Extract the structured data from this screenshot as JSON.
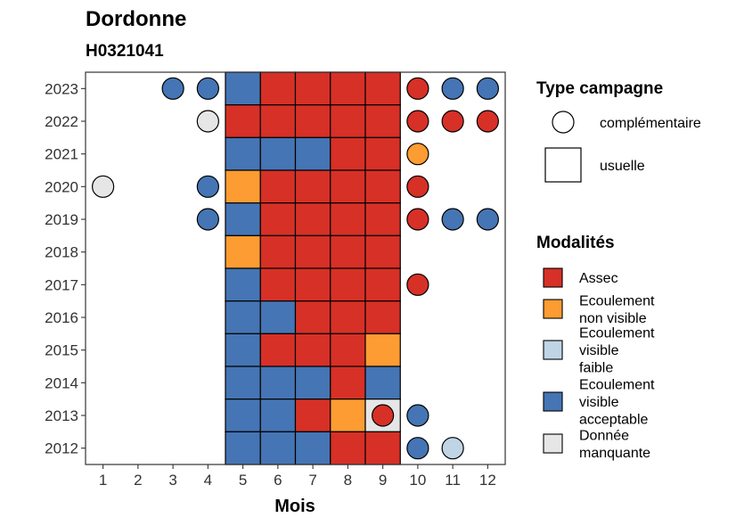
{
  "title": "Dordonne",
  "subtitle": "H0321041",
  "chart_data": {
    "type": "heatmap",
    "xlabel": "Mois",
    "ylabel": "",
    "x_ticks": [
      "1",
      "2",
      "3",
      "4",
      "5",
      "6",
      "7",
      "8",
      "9",
      "10",
      "11",
      "12"
    ],
    "y_ticks": [
      "2012",
      "2013",
      "2014",
      "2015",
      "2016",
      "2017",
      "2018",
      "2019",
      "2020",
      "2021",
      "2022",
      "2023"
    ],
    "xlim": [
      0.5,
      12.5
    ],
    "ylim": [
      2011.5,
      2023.5
    ],
    "colors": {
      "Assec": "#d73027",
      "Ecoulement non visible": "#fd9c32",
      "Ecoulement visible faible": "#bfd5e6",
      "Ecoulement visible acceptable": "#4575b4",
      "Donnée manquante": "#e6e6e6"
    },
    "usuelle": [
      {
        "year": 2023,
        "values": [
          "EA",
          "A",
          "A",
          "A",
          "A"
        ]
      },
      {
        "year": 2022,
        "values": [
          "A",
          "A",
          "A",
          "A",
          "A"
        ]
      },
      {
        "year": 2021,
        "values": [
          "EA",
          "EA",
          "EA",
          "A",
          "A"
        ]
      },
      {
        "year": 2020,
        "values": [
          "ENV",
          "A",
          "A",
          "A",
          "A"
        ]
      },
      {
        "year": 2019,
        "values": [
          "EA",
          "A",
          "A",
          "A",
          "A"
        ]
      },
      {
        "year": 2018,
        "values": [
          "ENV",
          "A",
          "A",
          "A",
          "A"
        ]
      },
      {
        "year": 2017,
        "values": [
          "EA",
          "A",
          "A",
          "A",
          "A"
        ]
      },
      {
        "year": 2016,
        "values": [
          "EA",
          "EA",
          "A",
          "A",
          "A"
        ]
      },
      {
        "year": 2015,
        "values": [
          "EA",
          "A",
          "A",
          "A",
          "ENV"
        ]
      },
      {
        "year": 2014,
        "values": [
          "EA",
          "EA",
          "EA",
          "A",
          "EA"
        ]
      },
      {
        "year": 2013,
        "values": [
          "EA",
          "EA",
          "A",
          "ENV",
          "DM"
        ]
      },
      {
        "year": 2012,
        "values": [
          "EA",
          "EA",
          "EA",
          "A",
          "A"
        ]
      }
    ],
    "usuelle_months": [
      5,
      6,
      7,
      8,
      9
    ],
    "complementaire": [
      {
        "year": 2023,
        "month": 3,
        "value": "EA"
      },
      {
        "year": 2023,
        "month": 4,
        "value": "EA"
      },
      {
        "year": 2023,
        "month": 10,
        "value": "A"
      },
      {
        "year": 2023,
        "month": 11,
        "value": "EA"
      },
      {
        "year": 2023,
        "month": 12,
        "value": "EA"
      },
      {
        "year": 2022,
        "month": 4,
        "value": "DM"
      },
      {
        "year": 2022,
        "month": 10,
        "value": "A"
      },
      {
        "year": 2022,
        "month": 11,
        "value": "A"
      },
      {
        "year": 2022,
        "month": 12,
        "value": "A"
      },
      {
        "year": 2021,
        "month": 10,
        "value": "ENV"
      },
      {
        "year": 2020,
        "month": 1,
        "value": "DM"
      },
      {
        "year": 2020,
        "month": 4,
        "value": "EA"
      },
      {
        "year": 2020,
        "month": 10,
        "value": "A"
      },
      {
        "year": 2019,
        "month": 4,
        "value": "EA"
      },
      {
        "year": 2019,
        "month": 10,
        "value": "A"
      },
      {
        "year": 2019,
        "month": 11,
        "value": "EA"
      },
      {
        "year": 2019,
        "month": 12,
        "value": "EA"
      },
      {
        "year": 2017,
        "month": 10,
        "value": "A"
      },
      {
        "year": 2013,
        "month": 9,
        "value": "A"
      },
      {
        "year": 2013,
        "month": 10,
        "value": "EA"
      },
      {
        "year": 2012,
        "month": 10,
        "value": "EA"
      },
      {
        "year": 2012,
        "month": 11,
        "value": "EVF"
      }
    ],
    "code_map": {
      "A": "Assec",
      "ENV": "Ecoulement non visible",
      "EVF": "Ecoulement visible faible",
      "EA": "Ecoulement visible acceptable",
      "DM": "Donnée manquante"
    },
    "legend": {
      "type_title": "Type campagne",
      "type_entries": [
        "complémentaire",
        "usuelle"
      ],
      "mod_title": "Modalités",
      "mod_entries": [
        {
          "key": "Assec",
          "lines": [
            "Assec"
          ]
        },
        {
          "key": "Ecoulement non visible",
          "lines": [
            "Ecoulement",
            "non visible"
          ]
        },
        {
          "key": "Ecoulement visible faible",
          "lines": [
            "Ecoulement",
            "visible",
            "faible"
          ]
        },
        {
          "key": "Ecoulement visible acceptable",
          "lines": [
            "Ecoulement",
            "visible",
            "acceptable"
          ]
        },
        {
          "key": "Donnée manquante",
          "lines": [
            "Donnée",
            "manquante"
          ]
        }
      ]
    }
  }
}
